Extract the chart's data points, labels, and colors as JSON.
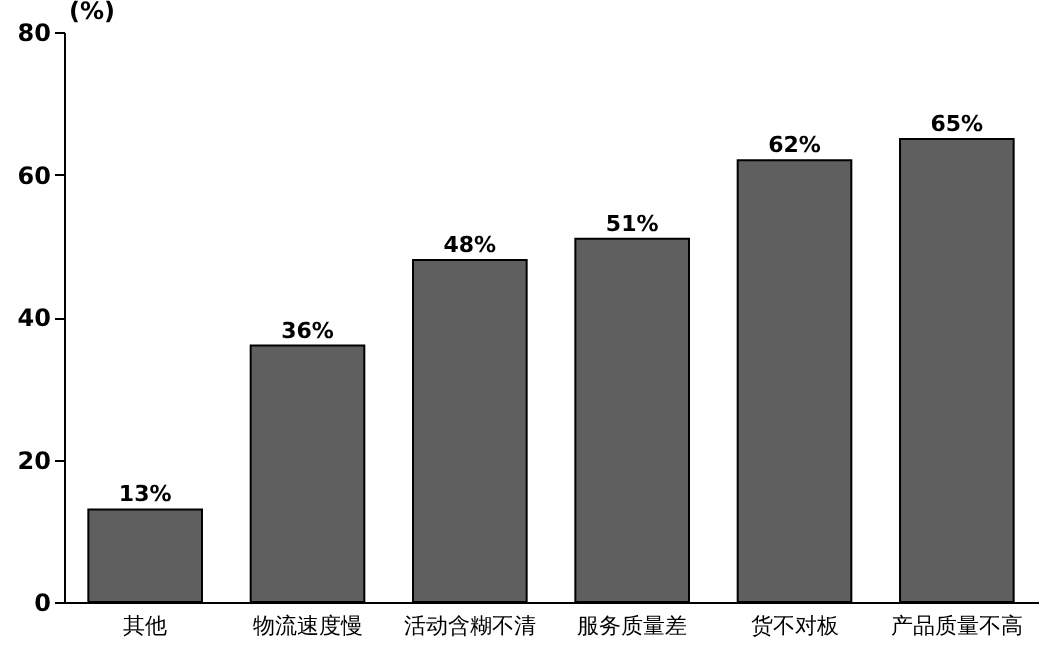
{
  "chart_data": {
    "type": "bar",
    "ylabel": "(%)",
    "categories": [
      "其他",
      "物流速度慢",
      "活动含糊不清",
      "服务质量差",
      "货不对板",
      "产品质量不高"
    ],
    "values": [
      13,
      36,
      48,
      51,
      62,
      65
    ],
    "value_labels": [
      "13%",
      "36%",
      "48%",
      "51%",
      "62%",
      "65%"
    ],
    "color": "#5f5f5f",
    "ylim": [
      0,
      80
    ],
    "yticks": [
      0,
      20,
      40,
      60,
      80
    ],
    "grid": false
  }
}
